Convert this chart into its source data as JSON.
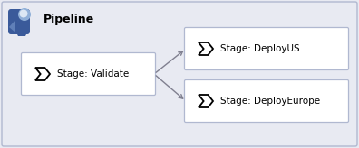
{
  "title": "Pipeline",
  "bg_color": "#e8eaf2",
  "box_fill": "#ffffff",
  "box_edge": "#b0b8d0",
  "arrow_color": "#808090",
  "text_color": "#000000",
  "title_fontsize": 9,
  "label_fontsize": 7.5,
  "validate_label": "Stage: Validate",
  "deployus_label": "Stage: DeployUS",
  "deployeurope_label": "Stage: DeployEurope",
  "icon_dark": "#3a5a9a",
  "icon_mid": "#6080b8",
  "icon_light": "#90b0d8",
  "icon_white": "#dce8f4"
}
